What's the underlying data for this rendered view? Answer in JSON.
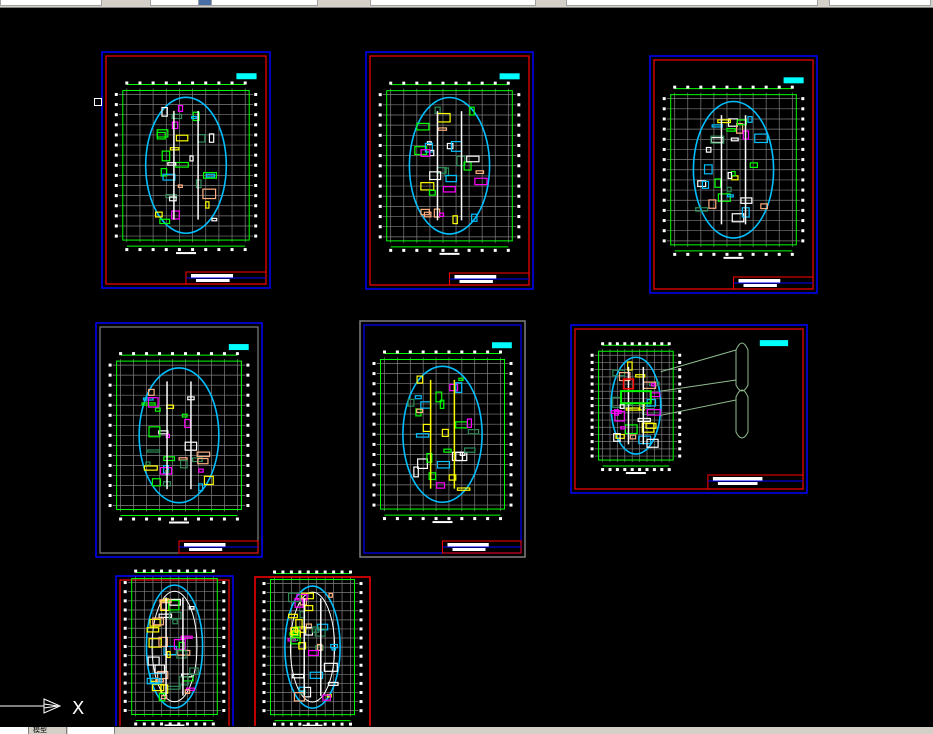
{
  "app": {
    "background": "#000000"
  },
  "bottom_tabs": [
    {
      "label": ""
    },
    {
      "label": "模型"
    },
    {
      "label": ""
    },
    {
      "label": ""
    }
  ],
  "ucs_icon": {
    "axis_label": "X"
  },
  "colors": {
    "sheet_outer": "#0000ff",
    "sheet_inner": "#ff0000",
    "grid": "#808080",
    "dimension": "#00ff00",
    "outline": "#00bfff",
    "label": "#00ffff",
    "highlight": "#ffff00",
    "accent": "#ff00ff",
    "white": "#ffffff"
  },
  "sheets": [
    {
      "name": "sheet-1",
      "plan": "floor-plan-a",
      "frame": "blue-red"
    },
    {
      "name": "sheet-2",
      "plan": "floor-plan-b",
      "frame": "blue-red"
    },
    {
      "name": "sheet-3",
      "plan": "floor-plan-c",
      "frame": "blue-red"
    },
    {
      "name": "sheet-4",
      "plan": "floor-plan-d",
      "frame": "blue-gray"
    },
    {
      "name": "sheet-5",
      "plan": "floor-plan-e",
      "frame": "gray-blue"
    },
    {
      "name": "sheet-6",
      "plan": "site-detail",
      "frame": "blue-red"
    },
    {
      "name": "sheet-7",
      "plan": "tower-plan",
      "frame": "blue-red"
    },
    {
      "name": "sheet-8",
      "plan": "tower-plan",
      "frame": "red"
    }
  ]
}
